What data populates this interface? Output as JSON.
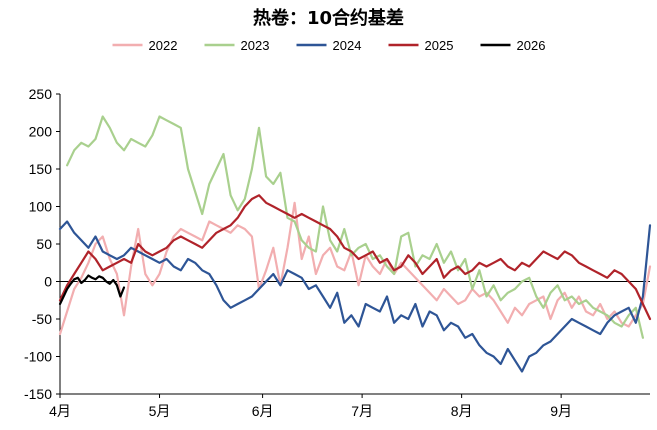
{
  "chart_data": {
    "type": "line",
    "title": "热卷：10合约基差",
    "xlabel": "",
    "ylabel": "",
    "ylim": [
      -150,
      250
    ],
    "yticks": [
      -150,
      -100,
      -50,
      0,
      50,
      100,
      150,
      200,
      250
    ],
    "xlim": [
      0,
      166
    ],
    "xticks": [
      {
        "label": "4月",
        "x": 0
      },
      {
        "label": "5月",
        "x": 28
      },
      {
        "label": "6月",
        "x": 57
      },
      {
        "label": "7月",
        "x": 85
      },
      {
        "label": "8月",
        "x": 113
      },
      {
        "label": "9月",
        "x": 141
      }
    ],
    "grid": false,
    "legend_position": "top",
    "series": [
      {
        "name": "2022",
        "color": "#f2aeb0",
        "x": [
          0,
          2,
          4,
          6,
          8,
          10,
          12,
          14,
          16,
          18,
          20,
          22,
          24,
          26,
          28,
          30,
          32,
          34,
          36,
          38,
          40,
          42,
          44,
          46,
          48,
          50,
          52,
          54,
          56,
          58,
          60,
          62,
          64,
          66,
          68,
          70,
          72,
          74,
          76,
          78,
          80,
          82,
          84,
          86,
          88,
          90,
          92,
          94,
          96,
          98,
          100,
          102,
          104,
          106,
          108,
          110,
          112,
          114,
          116,
          118,
          120,
          122,
          124,
          126,
          128,
          130,
          132,
          134,
          136,
          138,
          140,
          142,
          144,
          146,
          148,
          150,
          152,
          154,
          156,
          158,
          160,
          162,
          164,
          166
        ],
        "y": [
          -70,
          -40,
          -10,
          5,
          25,
          50,
          60,
          30,
          10,
          -45,
          20,
          70,
          10,
          -5,
          10,
          40,
          60,
          70,
          65,
          60,
          55,
          80,
          75,
          70,
          65,
          75,
          70,
          60,
          -10,
          15,
          45,
          -5,
          45,
          105,
          30,
          60,
          10,
          35,
          45,
          20,
          15,
          40,
          -5,
          35,
          20,
          10,
          30,
          10,
          25,
          15,
          5,
          -5,
          -15,
          -25,
          -10,
          -20,
          -30,
          -25,
          -10,
          -20,
          -15,
          -25,
          -40,
          -55,
          -35,
          -45,
          -30,
          -25,
          -20,
          -50,
          -25,
          -15,
          -35,
          -20,
          -40,
          -45,
          -30,
          -50,
          -40,
          -55,
          -60,
          -45,
          -30,
          20
        ]
      },
      {
        "name": "2023",
        "color": "#a9d08e",
        "x": [
          2,
          4,
          6,
          8,
          10,
          12,
          14,
          16,
          18,
          20,
          22,
          24,
          26,
          28,
          30,
          32,
          34,
          36,
          38,
          40,
          42,
          44,
          46,
          48,
          50,
          52,
          54,
          56,
          58,
          60,
          62,
          64,
          66,
          68,
          70,
          72,
          74,
          76,
          78,
          80,
          82,
          84,
          86,
          88,
          90,
          92,
          94,
          96,
          98,
          100,
          102,
          104,
          106,
          108,
          110,
          112,
          114,
          116,
          118,
          120,
          122,
          124,
          126,
          128,
          130,
          132,
          134,
          136,
          138,
          140,
          142,
          144,
          146,
          148,
          150,
          152,
          154,
          156,
          158,
          160,
          162,
          164
        ],
        "y": [
          155,
          175,
          185,
          180,
          190,
          220,
          205,
          185,
          175,
          190,
          185,
          180,
          195,
          220,
          215,
          210,
          205,
          150,
          120,
          90,
          130,
          150,
          170,
          115,
          95,
          110,
          150,
          205,
          140,
          130,
          145,
          85,
          80,
          55,
          45,
          40,
          100,
          55,
          40,
          70,
          35,
          45,
          50,
          30,
          35,
          20,
          10,
          60,
          65,
          20,
          35,
          30,
          50,
          25,
          40,
          15,
          30,
          -10,
          15,
          -20,
          -5,
          -25,
          -15,
          -10,
          0,
          5,
          -20,
          -35,
          -15,
          -5,
          -25,
          -20,
          -30,
          -25,
          -35,
          -40,
          -45,
          -55,
          -60,
          -45,
          -35,
          -75
        ]
      },
      {
        "name": "2024",
        "color": "#2e5596",
        "x": [
          0,
          2,
          4,
          6,
          8,
          10,
          12,
          14,
          16,
          18,
          20,
          22,
          24,
          26,
          28,
          30,
          32,
          34,
          36,
          38,
          40,
          42,
          44,
          46,
          48,
          50,
          52,
          54,
          56,
          58,
          60,
          62,
          64,
          66,
          68,
          70,
          72,
          74,
          76,
          78,
          80,
          82,
          84,
          86,
          88,
          90,
          92,
          94,
          96,
          98,
          100,
          102,
          104,
          106,
          108,
          110,
          112,
          114,
          116,
          118,
          120,
          122,
          124,
          126,
          128,
          130,
          132,
          134,
          136,
          138,
          140,
          142,
          144,
          146,
          148,
          150,
          152,
          154,
          156,
          158,
          160,
          162,
          164,
          166
        ],
        "y": [
          70,
          80,
          65,
          55,
          45,
          60,
          40,
          35,
          30,
          35,
          45,
          40,
          35,
          30,
          25,
          30,
          20,
          15,
          30,
          25,
          15,
          10,
          -5,
          -25,
          -35,
          -30,
          -25,
          -20,
          -10,
          0,
          10,
          -5,
          15,
          10,
          5,
          -10,
          -5,
          -20,
          -35,
          -15,
          -55,
          -45,
          -60,
          -30,
          -35,
          -40,
          -20,
          -55,
          -45,
          -50,
          -30,
          -60,
          -40,
          -45,
          -65,
          -55,
          -60,
          -75,
          -70,
          -85,
          -95,
          -100,
          -110,
          -90,
          -105,
          -120,
          -100,
          -95,
          -85,
          -80,
          -70,
          -60,
          -50,
          -55,
          -60,
          -65,
          -70,
          -55,
          -45,
          -40,
          -35,
          -55,
          -20,
          75
        ]
      },
      {
        "name": "2025",
        "color": "#b0232a",
        "x": [
          0,
          2,
          4,
          6,
          8,
          10,
          12,
          14,
          16,
          18,
          20,
          22,
          24,
          26,
          28,
          30,
          32,
          34,
          36,
          38,
          40,
          42,
          44,
          46,
          48,
          50,
          52,
          54,
          56,
          58,
          60,
          62,
          64,
          66,
          68,
          70,
          72,
          74,
          76,
          78,
          80,
          82,
          84,
          86,
          88,
          90,
          92,
          94,
          96,
          98,
          100,
          102,
          104,
          106,
          108,
          110,
          112,
          114,
          116,
          118,
          120,
          122,
          124,
          126,
          128,
          130,
          132,
          134,
          136,
          138,
          140,
          142,
          144,
          146,
          148,
          150,
          152,
          154,
          156,
          158,
          160,
          162,
          164,
          166
        ],
        "y": [
          -25,
          -5,
          10,
          25,
          40,
          30,
          15,
          20,
          25,
          30,
          25,
          50,
          40,
          35,
          40,
          45,
          55,
          60,
          55,
          50,
          45,
          55,
          65,
          70,
          75,
          85,
          100,
          110,
          115,
          105,
          100,
          95,
          90,
          85,
          90,
          85,
          80,
          75,
          70,
          60,
          45,
          40,
          30,
          35,
          40,
          25,
          30,
          15,
          20,
          35,
          25,
          10,
          20,
          30,
          5,
          15,
          20,
          10,
          15,
          25,
          20,
          25,
          30,
          20,
          15,
          25,
          20,
          30,
          40,
          35,
          30,
          40,
          35,
          25,
          20,
          15,
          10,
          5,
          15,
          10,
          0,
          -10,
          -30,
          -50
        ]
      },
      {
        "name": "2026",
        "color": "#000000",
        "x": [
          0,
          1,
          2,
          3,
          4,
          5,
          6,
          7,
          8,
          9,
          10,
          11,
          12,
          13,
          14,
          15,
          16,
          17,
          18
        ],
        "y": [
          -30,
          -20,
          -10,
          -3,
          3,
          5,
          -2,
          2,
          8,
          5,
          3,
          7,
          5,
          0,
          -3,
          2,
          -5,
          -20,
          -8
        ]
      }
    ]
  }
}
